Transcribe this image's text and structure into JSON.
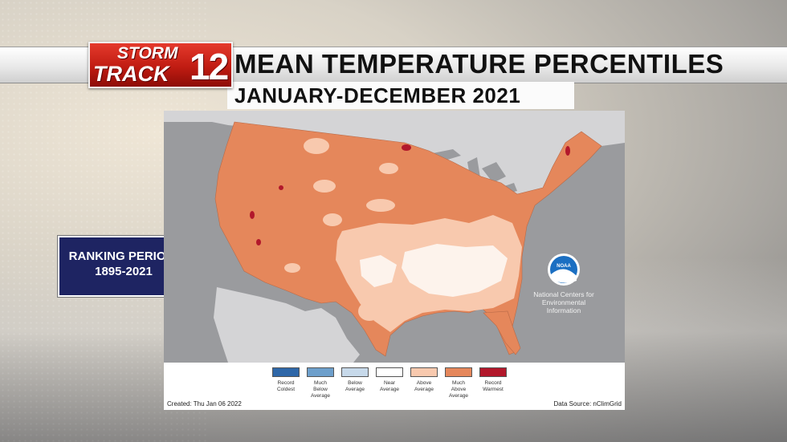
{
  "header": {
    "logo_top": "STORM",
    "logo_bottom": "TRACK",
    "logo_number": "12",
    "title": "MEAN TEMPERATURE PERCENTILES",
    "subtitle": "JANUARY-DECEMBER 2021"
  },
  "ranking": {
    "line1": "RANKING PERIOD:",
    "line2": "1895-2021"
  },
  "map": {
    "noaa_logo_text": "NOAA",
    "noaa_caption_lines": [
      "National Centers for",
      "Environmental",
      "Information"
    ],
    "legend": [
      {
        "lines": [
          "Record",
          "Coldest"
        ],
        "color": "#2f67a8"
      },
      {
        "lines": [
          "Much",
          "Below",
          "Average"
        ],
        "color": "#6d9fcb"
      },
      {
        "lines": [
          "Below",
          "Average"
        ],
        "color": "#c7d9ea"
      },
      {
        "lines": [
          "Near",
          "Average"
        ],
        "color": "#ffffff"
      },
      {
        "lines": [
          "Above",
          "Average"
        ],
        "color": "#f8c9ae"
      },
      {
        "lines": [
          "Much",
          "Above",
          "Average"
        ],
        "color": "#e5875b"
      },
      {
        "lines": [
          "Record",
          "Warmest"
        ],
        "color": "#b2182b"
      }
    ],
    "created": "Created: Thu Jan 06 2022",
    "source": "Data Source: nClimGrid"
  },
  "colors": {
    "much_above": "#e5875b",
    "above": "#f8c9ae",
    "near": "#fdf3ec",
    "record_warm": "#b2182b",
    "water": "#9a9b9e",
    "land_other": "#d4d4d6",
    "ranking_bg": "#1e2462",
    "logo_red": "#c01c12"
  }
}
